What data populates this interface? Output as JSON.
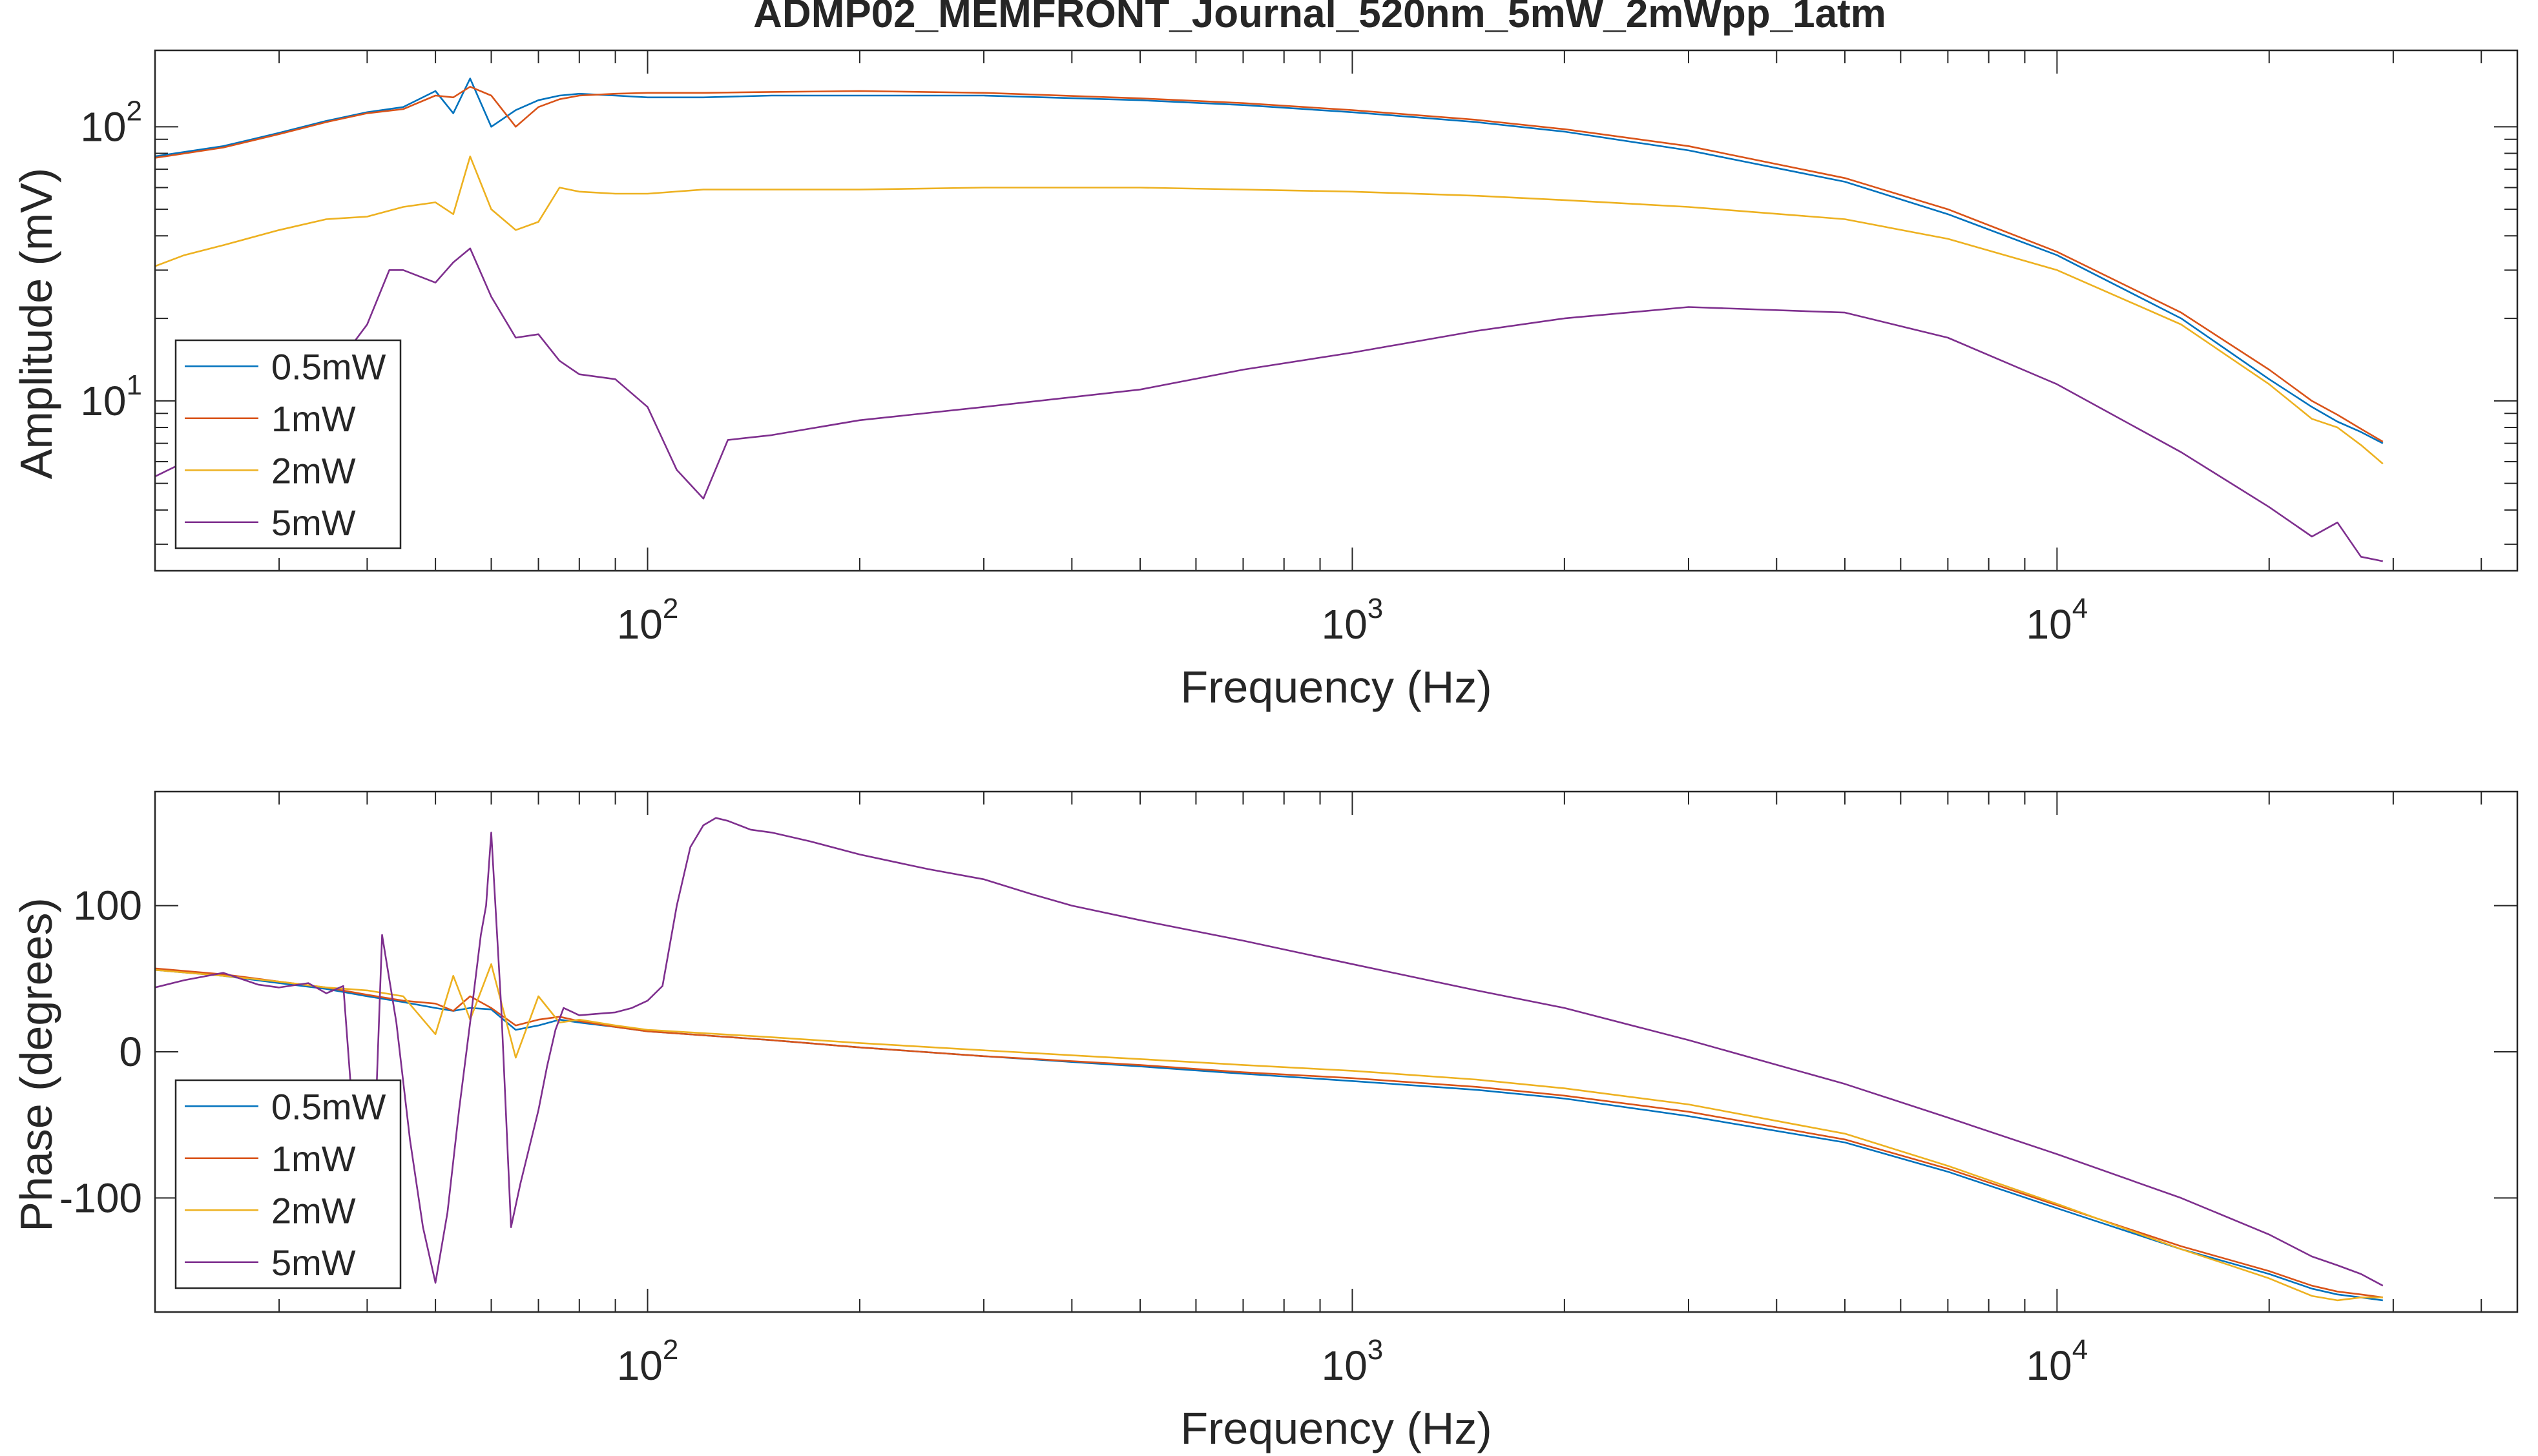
{
  "figure_title": "ADMP02_MEMFRONT_Journal_520nm_5mW_2mWpp_1atm",
  "colors": {
    "s1": "#0072BD",
    "s2": "#D95319",
    "s3": "#EDB120",
    "s4": "#7E2F8E",
    "axis": "#262626"
  },
  "chart_data": [
    {
      "type": "line",
      "title": "ADMP02_MEMFRONT_Journal_520nm_5mW_2mWpp_1atm",
      "xlabel": "Frequency (Hz)",
      "ylabel": "Amplitude (mV)",
      "xscale": "log",
      "yscale": "log",
      "xlim": [
        20,
        45000
      ],
      "ylim": [
        2.4,
        190
      ],
      "xticks": [
        {
          "value": 100,
          "base": "10",
          "exp": "2"
        },
        {
          "value": 1000,
          "base": "10",
          "exp": "3"
        },
        {
          "value": 10000,
          "base": "10",
          "exp": "4"
        }
      ],
      "yticks": [
        {
          "value": 10,
          "base": "10",
          "exp": "1"
        },
        {
          "value": 100,
          "base": "10",
          "exp": "2"
        }
      ],
      "legend_location": "bottom-left",
      "series": [
        {
          "name": "0.5mW",
          "x": [
            20,
            25,
            30,
            35,
            40,
            45,
            50,
            53,
            56,
            60,
            65,
            70,
            75,
            80,
            90,
            100,
            120,
            150,
            200,
            300,
            500,
            700,
            1000,
            1500,
            2000,
            3000,
            5000,
            7000,
            10000,
            15000,
            20000,
            23000,
            25000,
            27000,
            29000
          ],
          "y": [
            78,
            85,
            95,
            105,
            113,
            118,
            135,
            112,
            150,
            100,
            115,
            125,
            130,
            132,
            130,
            128,
            128,
            130,
            130,
            130,
            125,
            120,
            113,
            104,
            96,
            82,
            63,
            48,
            34,
            20,
            12,
            9.5,
            8.4,
            7.7,
            7.0
          ]
        },
        {
          "name": "1mW",
          "x": [
            20,
            25,
            30,
            35,
            40,
            45,
            50,
            53,
            56,
            60,
            65,
            70,
            75,
            80,
            90,
            100,
            120,
            150,
            200,
            300,
            500,
            700,
            1000,
            1500,
            2000,
            3000,
            5000,
            7000,
            10000,
            15000,
            20000,
            23000,
            25000,
            27000,
            29000
          ],
          "y": [
            77,
            84,
            94,
            104,
            112,
            116,
            130,
            128,
            140,
            130,
            100,
            118,
            126,
            130,
            132,
            133,
            133,
            134,
            135,
            133,
            127,
            122,
            115,
            106,
            98,
            85,
            65,
            50,
            35,
            21,
            13,
            10.0,
            8.9,
            7.9,
            7.1
          ]
        },
        {
          "name": "2mW",
          "x": [
            20,
            22,
            25,
            30,
            35,
            40,
            45,
            50,
            53,
            56,
            60,
            65,
            70,
            75,
            80,
            90,
            100,
            120,
            150,
            200,
            300,
            500,
            700,
            1000,
            1500,
            2000,
            3000,
            5000,
            7000,
            10000,
            15000,
            20000,
            23000,
            25000,
            27000,
            29000
          ],
          "y": [
            31,
            34,
            37,
            42,
            46,
            47,
            51,
            53,
            48,
            78,
            50,
            42,
            45,
            60,
            58,
            57,
            57,
            59,
            59,
            59,
            60,
            60,
            59,
            58,
            56,
            54,
            51,
            46,
            39,
            30,
            19,
            11.5,
            8.6,
            8.0,
            6.9,
            5.9
          ]
        },
        {
          "name": "5mW",
          "x": [
            20,
            25,
            30,
            35,
            40,
            43,
            45,
            50,
            53,
            56,
            60,
            65,
            70,
            75,
            80,
            90,
            100,
            110,
            120,
            130,
            150,
            200,
            300,
            500,
            700,
            1000,
            1500,
            2000,
            3000,
            5000,
            7000,
            10000,
            15000,
            20000,
            23000,
            25000,
            27000,
            29000
          ],
          "y": [
            5.3,
            7.0,
            9.0,
            12,
            19,
            30,
            30,
            27,
            32,
            36,
            24,
            17,
            17.5,
            14,
            12.5,
            12,
            9.5,
            5.6,
            4.4,
            7.2,
            7.5,
            8.5,
            9.5,
            11,
            13,
            15,
            18,
            20,
            22,
            21,
            17,
            11.5,
            6.5,
            4.1,
            3.2,
            3.6,
            2.7,
            2.6
          ]
        }
      ]
    },
    {
      "type": "line",
      "xlabel": "Frequency (Hz)",
      "ylabel": "Phase (degrees)",
      "xscale": "log",
      "yscale": "linear",
      "xlim": [
        20,
        45000
      ],
      "ylim": [
        -178,
        178
      ],
      "xticks": [
        {
          "value": 100,
          "base": "10",
          "exp": "2"
        },
        {
          "value": 1000,
          "base": "10",
          "exp": "3"
        },
        {
          "value": 10000,
          "base": "10",
          "exp": "4"
        }
      ],
      "yticks": [
        {
          "value": -100,
          "label": "-100"
        },
        {
          "value": 0,
          "label": "0"
        },
        {
          "value": 100,
          "label": "100"
        }
      ],
      "legend_location": "bottom-left",
      "series": [
        {
          "name": "0.5mW",
          "x": [
            20,
            25,
            30,
            35,
            40,
            45,
            50,
            53,
            56,
            60,
            65,
            70,
            75,
            80,
            90,
            100,
            150,
            200,
            300,
            500,
            700,
            1000,
            1500,
            2000,
            3000,
            5000,
            7000,
            10000,
            15000,
            20000,
            23000,
            25000,
            27000,
            29000
          ],
          "y": [
            56,
            52,
            47,
            43,
            38,
            34,
            30,
            28,
            30,
            29,
            15,
            18,
            22,
            20,
            17,
            14,
            8,
            3,
            -3,
            -10,
            -15,
            -20,
            -26,
            -32,
            -44,
            -62,
            -82,
            -107,
            -135,
            -152,
            -162,
            -166,
            -168,
            -170
          ]
        },
        {
          "name": "1mW",
          "x": [
            20,
            25,
            30,
            35,
            40,
            45,
            50,
            53,
            56,
            60,
            65,
            70,
            75,
            80,
            90,
            100,
            150,
            200,
            300,
            500,
            700,
            1000,
            1500,
            2000,
            3000,
            5000,
            7000,
            10000,
            15000,
            20000,
            23000,
            25000,
            27000,
            29000
          ],
          "y": [
            57,
            53,
            48,
            44,
            39,
            35,
            33,
            28,
            38,
            30,
            18,
            22,
            24,
            21,
            17,
            14,
            8,
            3,
            -3,
            -9,
            -14,
            -18,
            -24,
            -30,
            -41,
            -60,
            -80,
            -105,
            -133,
            -150,
            -160,
            -164,
            -166,
            -168
          ]
        },
        {
          "name": "2mW",
          "x": [
            20,
            25,
            30,
            35,
            40,
            45,
            50,
            53,
            56,
            60,
            65,
            70,
            75,
            80,
            90,
            100,
            150,
            200,
            300,
            500,
            700,
            1000,
            1500,
            2000,
            3000,
            5000,
            7000,
            10000,
            15000,
            20000,
            23000,
            25000,
            27000,
            29000
          ],
          "y": [
            56,
            52,
            48,
            44,
            42,
            38,
            12,
            52,
            22,
            60,
            -4,
            38,
            20,
            22,
            18,
            15,
            10,
            6,
            1,
            -5,
            -9,
            -13,
            -19,
            -25,
            -36,
            -56,
            -78,
            -104,
            -135,
            -155,
            -167,
            -170,
            -168,
            -168
          ]
        },
        {
          "name": "5mW",
          "x": [
            20,
            22,
            25,
            28,
            30,
            33,
            35,
            37,
            38,
            40,
            41,
            42,
            44,
            46,
            48,
            50,
            52,
            54,
            56,
            58,
            59,
            60,
            62,
            64,
            66,
            70,
            72,
            74,
            76,
            80,
            85,
            90,
            95,
            100,
            105,
            110,
            115,
            120,
            125,
            130,
            140,
            150,
            170,
            200,
            250,
            300,
            350,
            400,
            500,
            700,
            1000,
            1500,
            2000,
            3000,
            5000,
            7000,
            10000,
            15000,
            20000,
            23000,
            25000,
            27000,
            29000
          ],
          "y": [
            44,
            49,
            54,
            46,
            44,
            47,
            40,
            45,
            -30,
            -80,
            -60,
            80,
            20,
            -60,
            -120,
            -158,
            -110,
            -40,
            20,
            80,
            100,
            150,
            30,
            -120,
            -90,
            -40,
            -10,
            15,
            30,
            25,
            26,
            27,
            30,
            35,
            45,
            100,
            140,
            155,
            160,
            158,
            152,
            150,
            144,
            135,
            125,
            118,
            108,
            100,
            90,
            76,
            60,
            42,
            30,
            8,
            -22,
            -45,
            -70,
            -100,
            -125,
            -140,
            -146,
            -152,
            -160
          ]
        }
      ]
    }
  ]
}
